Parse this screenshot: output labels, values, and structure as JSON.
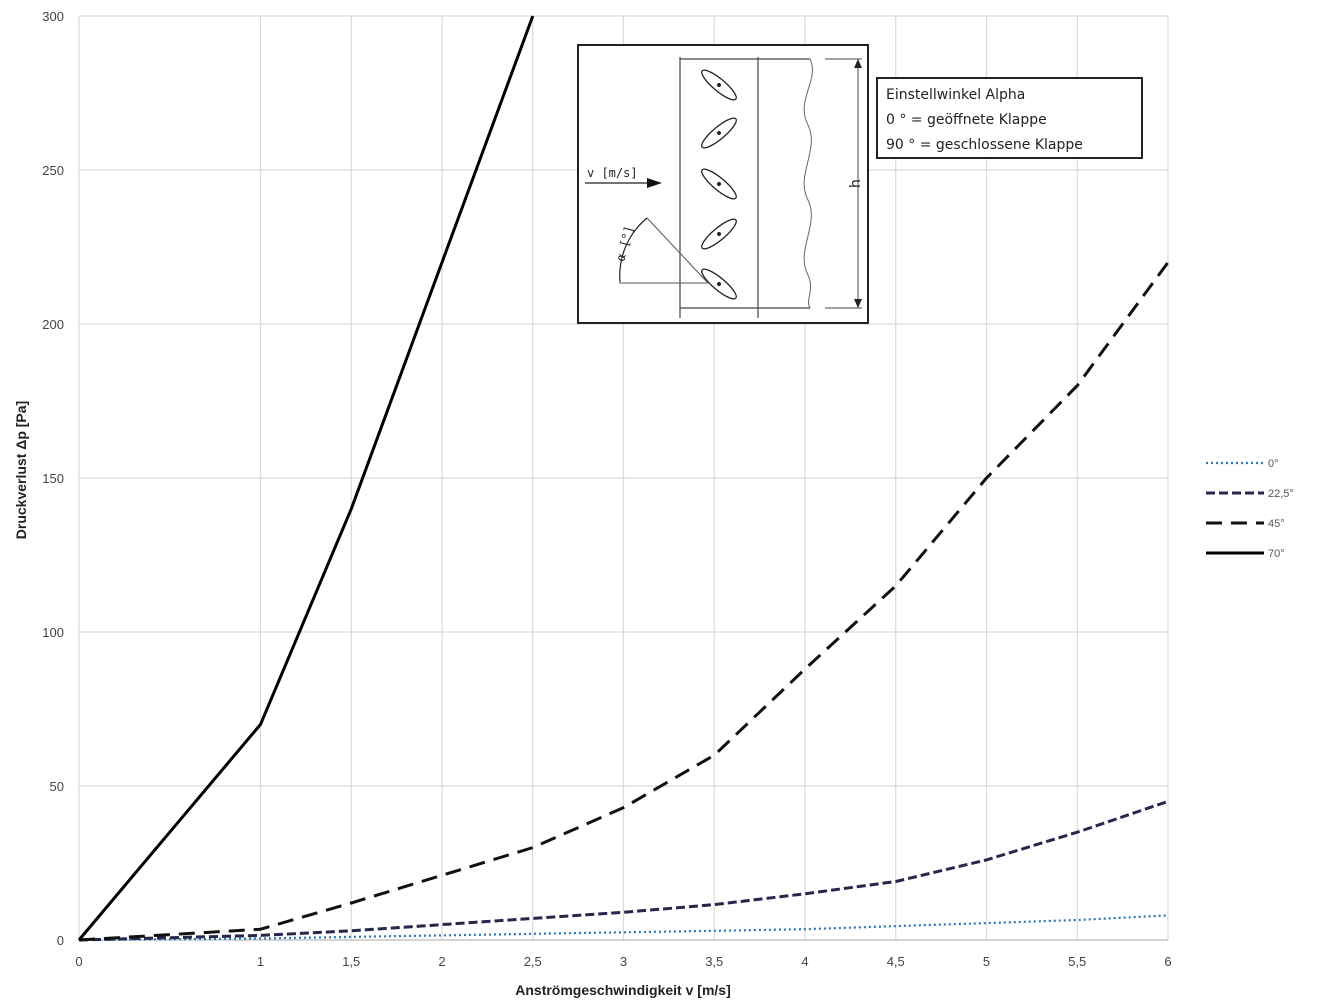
{
  "chart_data": {
    "type": "line",
    "title": "",
    "xlabel": "Anströmgeschwindigkeit v [m/s]",
    "ylabel": "Druckverlust Δp [Pa]",
    "xlim": [
      0,
      6
    ],
    "ylim": [
      0,
      300
    ],
    "x_ticks": [
      "0",
      "1",
      "1,5",
      "2",
      "2,5",
      "3",
      "3,5",
      "4",
      "4,5",
      "5",
      "5,5",
      "6"
    ],
    "x_tick_values": [
      0,
      1,
      1.5,
      2,
      2.5,
      3,
      3.5,
      4,
      4.5,
      5,
      5.5,
      6
    ],
    "y_ticks": [
      "0",
      "50",
      "100",
      "150",
      "200",
      "250",
      "300"
    ],
    "y_tick_values": [
      0,
      50,
      100,
      150,
      200,
      250,
      300
    ],
    "grid": true,
    "legend_position": "right",
    "series": [
      {
        "name": "0°",
        "style": "dotted",
        "color": "#2e75b6",
        "x": [
          0,
          1,
          1.5,
          2,
          2.5,
          3,
          3.5,
          4,
          4.5,
          5,
          5.5,
          6
        ],
        "y": [
          0,
          0.5,
          1,
          1.5,
          2,
          2.5,
          3,
          3.5,
          4.5,
          5.5,
          6.5,
          8
        ]
      },
      {
        "name": "22,5°",
        "style": "dashed-short",
        "color": "#25284a",
        "x": [
          0,
          1,
          1.5,
          2,
          2.5,
          3,
          3.5,
          4,
          4.5,
          5,
          5.5,
          6
        ],
        "y": [
          0,
          1.5,
          3,
          5,
          7,
          9,
          11.5,
          15,
          19,
          26,
          35,
          45
        ]
      },
      {
        "name": "45°",
        "style": "dashed-long",
        "color": "#111111",
        "x": [
          0,
          1,
          1.5,
          2,
          2.5,
          3,
          3.5,
          4,
          4.5,
          5,
          5.5,
          6
        ],
        "y": [
          0,
          3.5,
          12,
          21,
          30,
          43,
          60,
          88,
          115,
          150,
          180,
          220
        ]
      },
      {
        "name": "70°",
        "style": "solid",
        "color": "#000000",
        "x": [
          0,
          1,
          1.5,
          2,
          2.5
        ],
        "y": [
          0,
          70,
          140,
          220,
          300
        ]
      }
    ],
    "inset": {
      "flow_label": "v [m/s]",
      "angle_label": "α [°]",
      "height_label": "h",
      "legend_lines": [
        "Einstellwinkel Alpha",
        "0 ° = geöffnete Klappe",
        "90 ° = geschlossene Klappe"
      ]
    }
  }
}
